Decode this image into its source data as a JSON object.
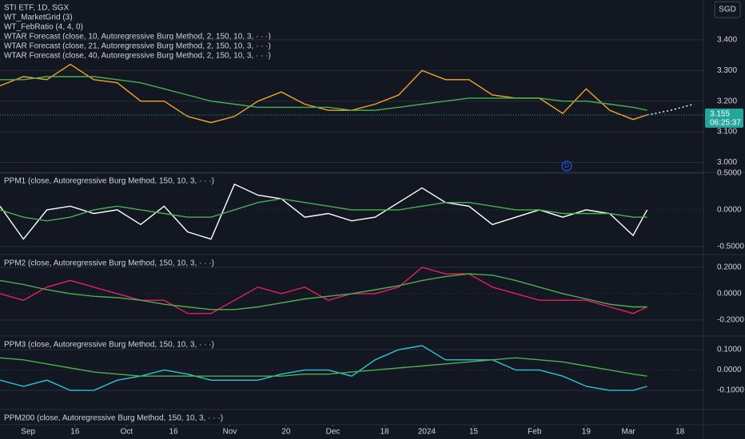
{
  "currency": "SGD",
  "chart_data": [
    {
      "type": "line",
      "title": "STI ETF, 1D, SGX",
      "labels": [
        "WT_MarketGrid (3)",
        "WT_FebRatio (4, 4, 0)",
        "WTAR Forecast (close, 10, Autoregressive Burg Method, 2, 150, 10, 3, · · ·)",
        "WTAR Forecast (close, 21, Autoregressive Burg Method, 2, 150, 10, 3, · · ·)",
        "WTAR Forecast (close, 40, Autoregressive Burg Method, 2, 150, 10, 3, · · ·)"
      ],
      "xlim": [
        0,
        150
      ],
      "x": [
        0,
        5,
        10,
        15,
        20,
        25,
        30,
        35,
        40,
        45,
        50,
        55,
        60,
        65,
        70,
        75,
        80,
        85,
        90,
        95,
        100,
        105,
        110,
        115,
        120,
        125,
        130,
        135,
        138
      ],
      "ylim": [
        2.97,
        3.53
      ],
      "yticks": [
        {
          "value": 3.0,
          "label": "3.000"
        },
        {
          "value": 3.1,
          "label": "3.100"
        },
        {
          "value": 3.2,
          "label": "3.200"
        },
        {
          "value": 3.3,
          "label": "3.300"
        },
        {
          "value": 3.4,
          "label": "3.400"
        }
      ],
      "series": [
        {
          "color": "#f5a623",
          "values": [
            3.25,
            3.28,
            3.27,
            3.32,
            3.27,
            3.26,
            3.2,
            3.2,
            3.15,
            3.13,
            3.15,
            3.2,
            3.23,
            3.19,
            3.17,
            3.17,
            3.19,
            3.22,
            3.3,
            3.27,
            3.27,
            3.22,
            3.21,
            3.21,
            3.16,
            3.24,
            3.17,
            3.14,
            3.155
          ]
        },
        {
          "color": "#4caf50",
          "values": [
            3.27,
            3.27,
            3.28,
            3.28,
            3.28,
            3.27,
            3.26,
            3.24,
            3.22,
            3.2,
            3.19,
            3.18,
            3.18,
            3.18,
            3.18,
            3.17,
            3.17,
            3.18,
            3.19,
            3.2,
            3.21,
            3.21,
            3.21,
            3.21,
            3.2,
            3.2,
            3.19,
            3.18,
            3.17
          ]
        },
        {
          "color": "#ffffff",
          "style": "dotted",
          "x": [
            138,
            143,
            148
          ],
          "values": [
            3.155,
            3.17,
            3.19
          ]
        }
      ],
      "price_label": {
        "value": 3.155,
        "label": "3.155"
      },
      "countdown": "06:25:37",
      "event_marker": "D"
    },
    {
      "type": "line",
      "title": "PPM1 (close, Autoregressive Burg Method, 150, 10, 3, · · ·)",
      "x": [
        0,
        5,
        10,
        15,
        20,
        25,
        30,
        35,
        40,
        45,
        50,
        55,
        60,
        65,
        70,
        75,
        80,
        85,
        90,
        95,
        100,
        105,
        110,
        115,
        120,
        125,
        130,
        135,
        138
      ],
      "ylim": [
        -0.6,
        0.5
      ],
      "yticks": [
        {
          "value": 0.5,
          "label": "0.5000"
        },
        {
          "value": 0,
          "label": "0.0000"
        },
        {
          "value": -0.5,
          "label": "-0.5000"
        }
      ],
      "series": [
        {
          "color": "#ffffff",
          "values": [
            0.05,
            -0.4,
            0.0,
            0.05,
            -0.05,
            0.0,
            -0.2,
            0.05,
            -0.3,
            -0.4,
            0.35,
            0.2,
            0.15,
            -0.1,
            -0.05,
            -0.15,
            -0.1,
            0.1,
            0.3,
            0.1,
            0.05,
            -0.2,
            -0.1,
            0.0,
            -0.1,
            0.0,
            -0.05,
            -0.35,
            0.0
          ]
        },
        {
          "color": "#4caf50",
          "values": [
            0.0,
            -0.1,
            -0.15,
            -0.1,
            0.0,
            0.05,
            0.0,
            -0.05,
            -0.1,
            -0.1,
            0.0,
            0.1,
            0.15,
            0.1,
            0.05,
            0.0,
            0.0,
            0.0,
            0.05,
            0.1,
            0.1,
            0.05,
            0.0,
            0.0,
            -0.05,
            -0.05,
            -0.05,
            -0.1,
            -0.1
          ]
        }
      ]
    },
    {
      "type": "line",
      "title": "PPM2 (close, Autoregressive Burg Method, 150, 10, 3, · · ·)",
      "x": [
        0,
        5,
        10,
        15,
        20,
        25,
        30,
        35,
        40,
        45,
        50,
        55,
        60,
        65,
        70,
        75,
        80,
        85,
        90,
        95,
        100,
        105,
        110,
        115,
        120,
        125,
        130,
        135,
        138
      ],
      "ylim": [
        -0.315,
        0.29
      ],
      "yticks": [
        {
          "value": 0.2,
          "label": "0.2000"
        },
        {
          "value": 0,
          "label": "0.0000"
        },
        {
          "value": -0.2,
          "label": "-0.2000"
        }
      ],
      "series": [
        {
          "color": "#e91e63",
          "values": [
            0.0,
            -0.05,
            0.05,
            0.1,
            0.05,
            0.0,
            -0.05,
            -0.05,
            -0.15,
            -0.15,
            -0.05,
            0.05,
            0.0,
            0.05,
            -0.05,
            0.0,
            0.0,
            0.05,
            0.2,
            0.15,
            0.15,
            0.05,
            0.0,
            -0.05,
            -0.05,
            -0.05,
            -0.1,
            -0.15,
            -0.1
          ]
        },
        {
          "color": "#4caf50",
          "values": [
            0.1,
            0.07,
            0.03,
            0.0,
            -0.02,
            -0.03,
            -0.05,
            -0.08,
            -0.1,
            -0.12,
            -0.12,
            -0.1,
            -0.07,
            -0.04,
            -0.02,
            0.0,
            0.03,
            0.06,
            0.1,
            0.13,
            0.15,
            0.14,
            0.1,
            0.05,
            0.0,
            -0.04,
            -0.08,
            -0.1,
            -0.1
          ]
        }
      ]
    },
    {
      "type": "line",
      "title": "PPM3 (close, Autoregressive Burg Method, 150, 10, 3, · · ·)",
      "x": [
        0,
        5,
        10,
        15,
        20,
        25,
        30,
        35,
        40,
        45,
        50,
        55,
        60,
        65,
        70,
        75,
        80,
        85,
        90,
        95,
        100,
        105,
        110,
        115,
        120,
        125,
        130,
        135,
        138
      ],
      "ylim": [
        -0.19,
        0.163
      ],
      "yticks": [
        {
          "value": 0.1,
          "label": "0.1000"
        },
        {
          "value": 0,
          "label": "0.0000"
        },
        {
          "value": -0.1,
          "label": "-0.1000"
        }
      ],
      "series": [
        {
          "color": "#26c6da",
          "values": [
            -0.05,
            -0.08,
            -0.05,
            -0.1,
            -0.1,
            -0.05,
            -0.03,
            0.0,
            -0.02,
            -0.05,
            -0.05,
            -0.05,
            -0.02,
            0.0,
            0.0,
            -0.03,
            0.05,
            0.1,
            0.12,
            0.05,
            0.05,
            0.05,
            0.0,
            0.0,
            -0.03,
            -0.08,
            -0.1,
            -0.1,
            -0.08
          ]
        },
        {
          "color": "#4caf50",
          "values": [
            0.06,
            0.05,
            0.03,
            0.01,
            -0.01,
            -0.02,
            -0.03,
            -0.03,
            -0.03,
            -0.03,
            -0.03,
            -0.03,
            -0.03,
            -0.02,
            -0.02,
            -0.01,
            0.0,
            0.01,
            0.02,
            0.03,
            0.04,
            0.05,
            0.06,
            0.05,
            0.04,
            0.02,
            0.0,
            -0.02,
            -0.03
          ]
        }
      ]
    },
    {
      "type": "line",
      "title": "PPM200 (close, Autoregressive Burg Method, 150, 10, 3, · · ·)",
      "series": [],
      "xticks": [
        {
          "value": 6,
          "label": "Sep"
        },
        16,
        {
          "value": 27,
          "label": "Oct"
        },
        {
          "value": 37,
          "label": "16"
        },
        {
          "value": 49,
          "label": "Nov"
        },
        {
          "value": 61,
          "label": "20"
        },
        {
          "value": 71,
          "label": "Dec"
        },
        {
          "value": 82,
          "label": "18"
        },
        {
          "value": 91,
          "label": "2024"
        },
        {
          "value": 101,
          "label": "15"
        },
        {
          "value": 114,
          "label": "Feb"
        },
        {
          "value": 125,
          "label": "19"
        },
        {
          "value": 134,
          "label": "Mar"
        },
        {
          "value": 145,
          "label": "18"
        }
      ]
    }
  ]
}
